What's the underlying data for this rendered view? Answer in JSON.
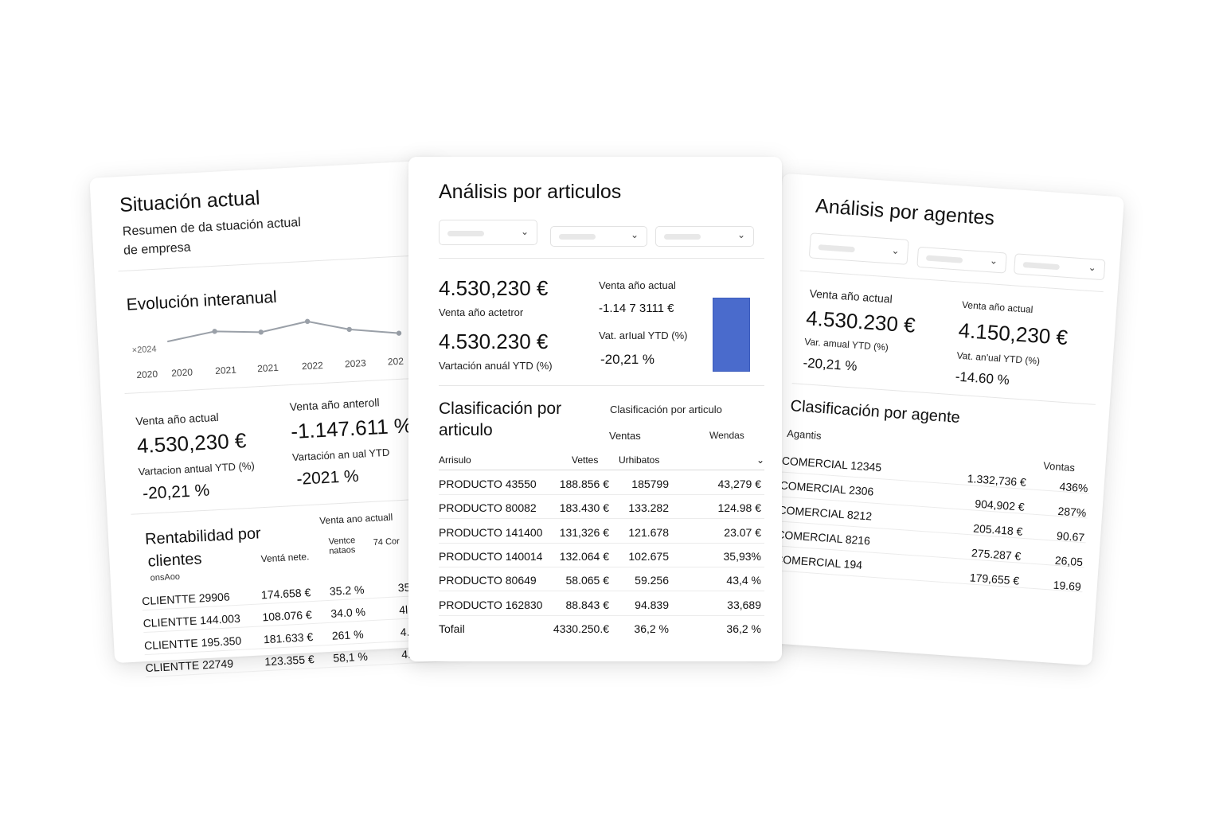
{
  "left": {
    "title": "Situación actual",
    "subtitle1": "Resumen de da stuación actual",
    "subtitle2": "de empresa",
    "chart_title": "Evolución interanual",
    "chart_data": {
      "type": "line",
      "ylabel": "×2024",
      "x_ticks": [
        "2020",
        "2020",
        "2021",
        "2021",
        "2022",
        "2023",
        "202"
      ],
      "values": [
        2.0,
        2.6,
        2.35,
        3.0,
        2.2,
        1.7
      ],
      "grid": false,
      "color": "#9aa0a8"
    },
    "kpi": {
      "a_label": "Venta año actual",
      "a_value": "4.530,230 €",
      "a_var_label": "Vartacion antual YTD (%)",
      "a_var": "-20,21 %",
      "b_label": "Venta año anteroll",
      "b_value": "-1.147.611 %",
      "b_var_label": "Vartación an ual YTD",
      "b_var": "-2021 %"
    },
    "table": {
      "title1": "Rentabilidad por",
      "title2": "clientes",
      "sub": "onsAoo",
      "group": "Venta ano actuall",
      "cols": [
        "Ventá nete.",
        "Ventce nataos",
        "74 Cor"
      ],
      "rows": [
        [
          "CLIENTTE 29906",
          "174.658 €",
          "35.2 %",
          "35"
        ],
        [
          "CLIENTTE 144.003",
          "108.076 €",
          "34.0 %",
          "4l."
        ],
        [
          "CLIENTTE 195.350",
          "181.633 €",
          "261 %",
          "4."
        ],
        [
          "CLIENTTE 22749",
          "123.355 €",
          "58,1 %",
          "4:"
        ]
      ]
    }
  },
  "mid": {
    "title": "Análisis por articulos",
    "kpi": {
      "v1": "4.530,230 €",
      "l1": "Venta año actetror",
      "v2": "4.530.230 €",
      "l2": "Vartación anuál YTD (%)",
      "r_label": "Venta año actual",
      "r_value": "-1.14 7 3111 €",
      "r_var_label": "Vat. arIual YTD (%)",
      "r_var": "-20,21 %",
      "bar_color": "#4a6bcc"
    },
    "section": {
      "title1": "Clasificación por",
      "title2": "articulo",
      "right_title": "Clasificación por articulo",
      "h_ventas": "Ventas",
      "h_wendas": "Wendas"
    },
    "table": {
      "cols": [
        "Arrisulo",
        "Vettes",
        "Urhibatos",
        "⌄"
      ],
      "rows": [
        [
          "PRODUCTO 43550",
          "188.856 €",
          "185799",
          "43,279 €"
        ],
        [
          "PRODUCTO 80082",
          "183.430 €",
          "133.282",
          "124.98 €"
        ],
        [
          "PRODUCTO 141400",
          "131,326 €",
          "121.678",
          "23.07 €"
        ],
        [
          "PRODUCTO 140014",
          "132.064 €",
          "102.675",
          "35,93%"
        ],
        [
          "PRODUCTO 80649",
          "58.065 €",
          "59.256",
          "43,4 %"
        ],
        [
          "PRODUCTO 162830",
          "88.843 €",
          "94.839",
          "33,689"
        ]
      ],
      "total": [
        "Tofail",
        "4330.250.€",
        "36,2 %",
        "36,2 %"
      ]
    }
  },
  "right": {
    "title": "Análisis por agentes",
    "kpi": {
      "a_label": "Venta año actual",
      "a_value": "4.530.230 €",
      "a_var_label": "Var. amual YTD (%)",
      "a_var": "-20,21 %",
      "b_label": "Venta año actual",
      "b_value": "4.150,230 €",
      "b_var_label": "Vat. an'ual YTD (%)",
      "b_var": "-14.60 %"
    },
    "section_title": "Clasificación por agente",
    "col_agent": "Agantis",
    "col_ventas": "Vontas",
    "rows": [
      [
        "COMERCIAL 12345",
        "1.332,736 €",
        "436%"
      ],
      [
        "COMERCIAL 2306",
        "904,902 €",
        "287%"
      ],
      [
        "COMERCIAL 8212",
        "205.418 €",
        "90.67"
      ],
      [
        "COMERCIAL 8216",
        "275.287 €",
        "26,05"
      ],
      [
        "COMERCIAL 194",
        "179,655 €",
        "19.69"
      ]
    ]
  }
}
